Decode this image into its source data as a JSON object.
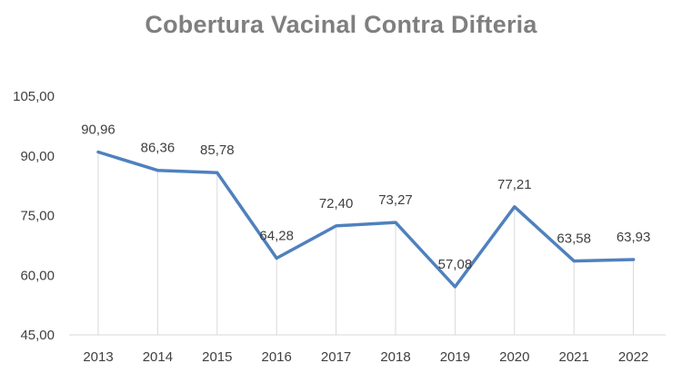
{
  "chart_data": {
    "type": "line",
    "title": "Cobertura Vacinal Contra Difteria",
    "xlabel": "",
    "ylabel": "",
    "categories": [
      "2013",
      "2014",
      "2015",
      "2016",
      "2017",
      "2018",
      "2019",
      "2020",
      "2021",
      "2022"
    ],
    "series": [
      {
        "values": [
          90.96,
          86.36,
          85.78,
          64.28,
          72.4,
          73.27,
          57.08,
          77.21,
          63.58,
          63.93
        ],
        "value_labels": [
          "90,96",
          "86,36",
          "85,78",
          "64,28",
          "72,40",
          "73,27",
          "57,08",
          "77,21",
          "63,58",
          "63,93"
        ],
        "color": "#4f81bd"
      }
    ],
    "ylim": [
      45,
      105
    ],
    "yticks": [
      45,
      60,
      75,
      90,
      105
    ],
    "ytick_labels": [
      "45,00",
      "60,00",
      "75,00",
      "90,00",
      "105,00"
    ],
    "grid": "vertical-drop-lines",
    "gridline_color": "#d9d9d9",
    "legend": "none"
  }
}
